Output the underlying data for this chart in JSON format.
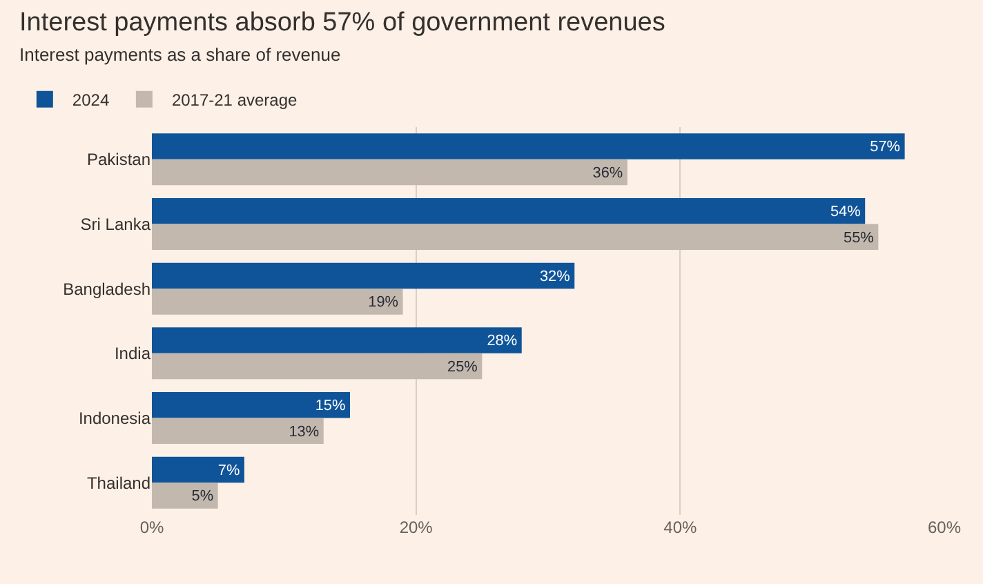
{
  "chart_data": {
    "type": "bar",
    "orientation": "horizontal",
    "title": "Interest payments absorb 57% of government revenues",
    "subtitle": "Interest payments as a share of revenue",
    "categories": [
      "Pakistan",
      "Sri Lanka",
      "Bangladesh",
      "India",
      "Indonesia",
      "Thailand"
    ],
    "series": [
      {
        "name": "2024",
        "color": "#0f5499",
        "values": [
          57,
          54,
          32,
          28,
          15,
          7
        ],
        "value_labels": [
          "57%",
          "54%",
          "32%",
          "28%",
          "15%",
          "7%"
        ]
      },
      {
        "name": "2017-21 average",
        "color": "#c2b8ae",
        "values": [
          36,
          55,
          19,
          25,
          13,
          5
        ],
        "value_labels": [
          "36%",
          "55%",
          "19%",
          "25%",
          "13%",
          "5%"
        ]
      }
    ],
    "xlim": [
      0,
      60
    ],
    "xticks": [
      {
        "value": 0,
        "label": "0%"
      },
      {
        "value": 20,
        "label": "20%"
      },
      {
        "value": 40,
        "label": "40%"
      },
      {
        "value": 60,
        "label": "60%"
      }
    ],
    "grid": "x",
    "legend": "top left"
  }
}
